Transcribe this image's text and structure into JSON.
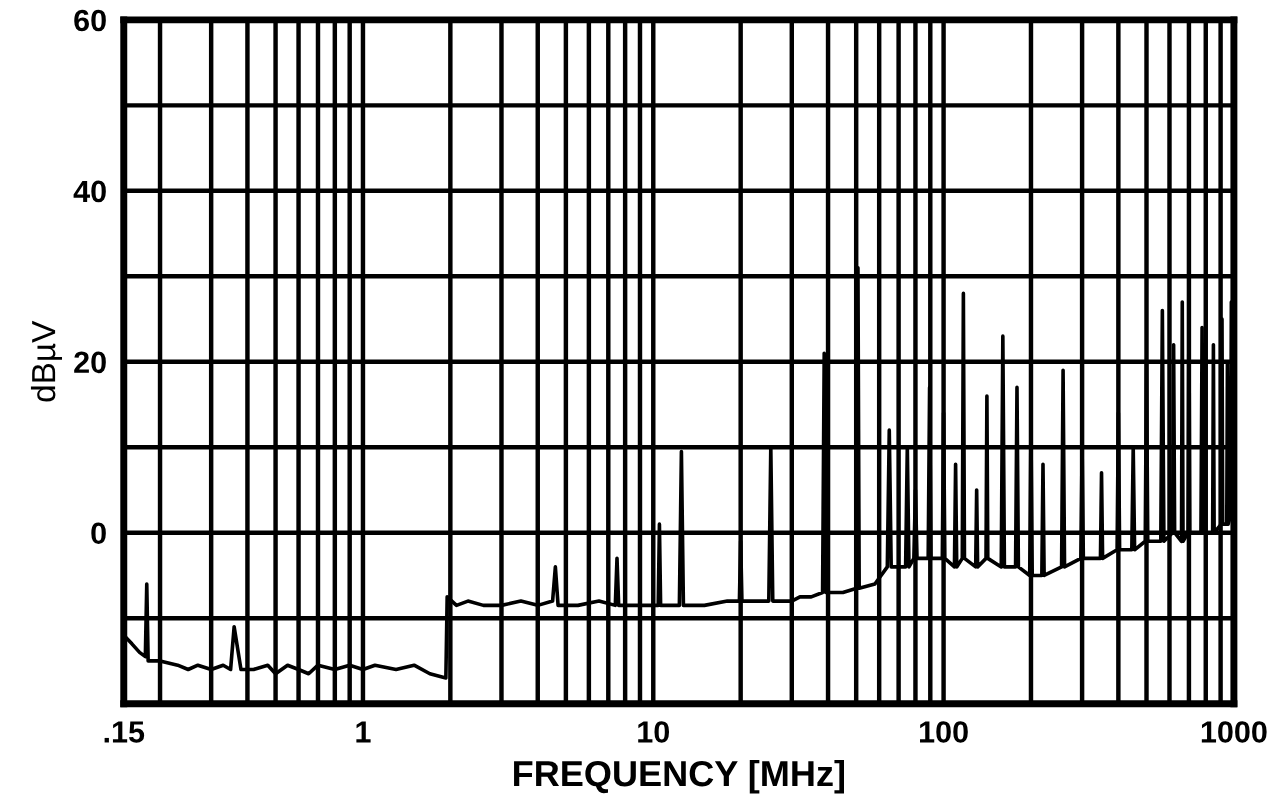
{
  "chart_data": {
    "type": "line",
    "xlabel": "FREQUENCY [MHz]",
    "ylabel": "dBµV",
    "log": "x",
    "grid": true,
    "line_style": "solid",
    "marker": "none",
    "xlim": [
      0.15,
      1000
    ],
    "ylim": [
      -20,
      60
    ],
    "xticks": [
      {
        "value": 0.15,
        "label": ".15"
      },
      {
        "value": 0.2,
        "label": null
      },
      {
        "value": 0.3,
        "label": null
      },
      {
        "value": 0.4,
        "label": null
      },
      {
        "value": 0.5,
        "label": null
      },
      {
        "value": 0.6,
        "label": null
      },
      {
        "value": 0.7,
        "label": null
      },
      {
        "value": 0.8,
        "label": null
      },
      {
        "value": 0.9,
        "label": null
      },
      1,
      {
        "value": 2,
        "label": null
      },
      {
        "value": 3,
        "label": null
      },
      {
        "value": 4,
        "label": null
      },
      {
        "value": 5,
        "label": null
      },
      {
        "value": 6,
        "label": null
      },
      {
        "value": 7,
        "label": null
      },
      {
        "value": 8,
        "label": null
      },
      {
        "value": 9,
        "label": null
      },
      10,
      {
        "value": 20,
        "label": null
      },
      {
        "value": 30,
        "label": null
      },
      {
        "value": 40,
        "label": null
      },
      {
        "value": 50,
        "label": null
      },
      {
        "value": 60,
        "label": null
      },
      {
        "value": 70,
        "label": null
      },
      {
        "value": 80,
        "label": null
      },
      {
        "value": 90,
        "label": null
      },
      100,
      {
        "value": 200,
        "label": null
      },
      {
        "value": 300,
        "label": null
      },
      {
        "value": 400,
        "label": null
      },
      {
        "value": 500,
        "label": null
      },
      {
        "value": 600,
        "label": null
      },
      {
        "value": 700,
        "label": null
      },
      {
        "value": 800,
        "label": null
      },
      {
        "value": 900,
        "label": null
      },
      1000
    ],
    "yticks": [
      {
        "value": -20,
        "label": null
      },
      {
        "value": -10,
        "label": null
      },
      0,
      {
        "value": 10,
        "label": null
      },
      20,
      {
        "value": 30,
        "label": null
      },
      40,
      {
        "value": 50,
        "label": null
      },
      60
    ],
    "series": [
      {
        "color": "#000000",
        "x": [
          0.15,
          0.16,
          0.17,
          0.178,
          0.18,
          0.182,
          0.2,
          0.23,
          0.25,
          0.27,
          0.3,
          0.33,
          0.35,
          0.36,
          0.38,
          0.42,
          0.47,
          0.5,
          0.55,
          0.6,
          0.65,
          0.7,
          0.8,
          0.9,
          1.0,
          1.1,
          1.3,
          1.5,
          1.7,
          1.93,
          1.95,
          2.1,
          2.3,
          2.6,
          3.0,
          3.5,
          4.0,
          4.5,
          4.6,
          4.7,
          5.5,
          6.5,
          7.4,
          7.5,
          7.6,
          9.0,
          10.4,
          10.5,
          10.6,
          12.3,
          12.5,
          12.7,
          15,
          18,
          19.8,
          20,
          20.2,
          25.0,
          25.4,
          25.8,
          30,
          32,
          35,
          38.3,
          38.8,
          39.3,
          45,
          50.2,
          50.7,
          51.2,
          58,
          64,
          65,
          66,
          74,
          75,
          76,
          79,
          80,
          81,
          88.5,
          89.5,
          90.5,
          99,
          100,
          101,
          109,
          110,
          111,
          116,
          117,
          118,
          129,
          130,
          131,
          140,
          141,
          142,
          158,
          160,
          162,
          177,
          179,
          181,
          198,
          200,
          202,
          218,
          220,
          222,
          255,
          258,
          261,
          297,
          300,
          303,
          347,
          350,
          353,
          396,
          400,
          404,
          445,
          450,
          455,
          495,
          500,
          505,
          560,
          567,
          574,
          615,
          620,
          625,
          660,
          664,
          668,
          695,
          700,
          705,
          770,
          777,
          784,
          845,
          850,
          855,
          905,
          910,
          915,
          945,
          950,
          955,
          975,
          980,
          985,
          1000
        ],
        "values": [
          -12,
          -13,
          -14,
          -14.5,
          -6,
          -15,
          -15,
          -15.5,
          -16,
          -15.5,
          -16,
          -15.5,
          -16,
          -11,
          -16,
          -16,
          -15.5,
          -16.5,
          -15.5,
          -16,
          -16.5,
          -15.5,
          -16,
          -15.5,
          -16,
          -15.5,
          -16,
          -15.5,
          -16.5,
          -17,
          -7.5,
          -8.5,
          -8,
          -8.5,
          -8.5,
          -8,
          -8.5,
          -8,
          -4,
          -8.5,
          -8.5,
          -8,
          -8.5,
          -3,
          -8.5,
          -8.5,
          -8.5,
          1,
          -8.5,
          -8.5,
          9.5,
          -8.5,
          -8.5,
          -8,
          -8,
          -1,
          -8,
          -8,
          10,
          -8,
          -8,
          -7.5,
          -7.5,
          -7,
          21,
          -7,
          -7,
          -6.5,
          31,
          -6.5,
          -6,
          -4,
          12,
          -4,
          -4,
          10,
          -4,
          -3,
          5,
          -3,
          -3,
          17,
          -3,
          -3,
          14,
          -3,
          -4,
          8,
          -4,
          -3,
          28,
          -3,
          -4,
          5,
          -4,
          -3,
          16,
          -3,
          -4,
          23,
          -4,
          -4,
          17,
          -4,
          -5,
          12,
          -5,
          -5,
          8,
          -5,
          -4,
          19,
          -4,
          -3,
          10,
          -3,
          -3,
          7,
          -3,
          -2,
          14,
          -2,
          -2,
          10,
          -2,
          -1,
          20,
          -1,
          -1,
          26,
          -1,
          0,
          22,
          0,
          -1,
          27,
          -1,
          0,
          25,
          0,
          0,
          24,
          0,
          0,
          22,
          0,
          1,
          25,
          1,
          1,
          20,
          1,
          2,
          27,
          2,
          3
        ]
      }
    ]
  }
}
